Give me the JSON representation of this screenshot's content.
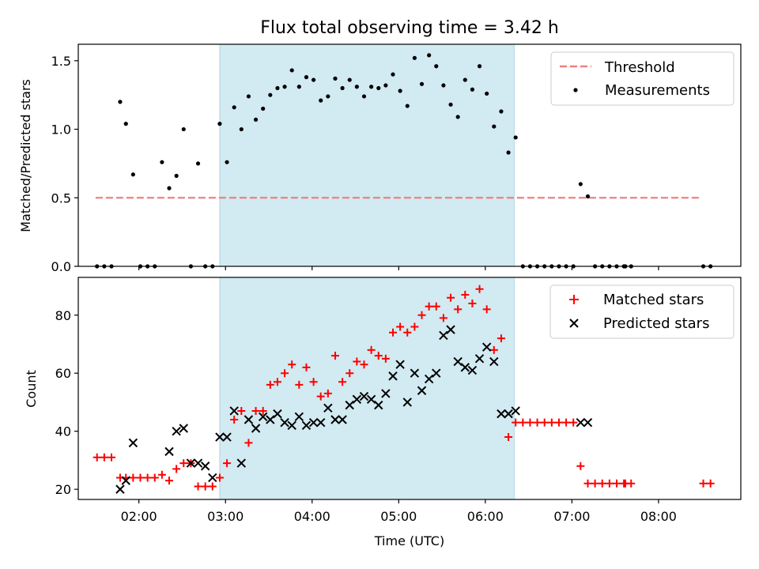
{
  "chart_data": {
    "title": "Flux total observing time = 3.42 h",
    "xlabel": "Time (UTC)",
    "xlim": [
      "01:18",
      "08:57"
    ],
    "xticks": [
      "02:00",
      "03:00",
      "04:00",
      "05:00",
      "06:00",
      "07:00",
      "08:00"
    ],
    "shaded_span": [
      "02:56",
      "06:20"
    ],
    "colors": {
      "shade": "#add8e6",
      "matched": "#ff0000",
      "predicted": "#000000",
      "threshold": "#f08080",
      "measurements": "#000000"
    },
    "panels": [
      {
        "id": "ratio",
        "type": "scatter",
        "ylabel": "Matched/Predicted stars",
        "ylim": [
          0,
          1.62
        ],
        "yticks": [
          "0.0",
          "0.5",
          "1.0",
          "1.5"
        ],
        "legend": [
          "Threshold",
          "Measurements"
        ],
        "legend_position": "top-right",
        "series": [
          {
            "name": "Threshold",
            "style": "dashed-line",
            "color": "#f08080",
            "x": [
              "01:30",
              "08:30"
            ],
            "y": [
              0.5,
              0.5
            ]
          },
          {
            "name": "Measurements",
            "style": "point",
            "color": "#000000",
            "x": [
              "01:31",
              "01:36",
              "01:41",
              "01:47",
              "01:51",
              "01:56",
              "02:01",
              "02:06",
              "02:11",
              "02:16",
              "02:21",
              "02:26",
              "02:31",
              "02:36",
              "02:41",
              "02:46",
              "02:51",
              "02:56",
              "03:01",
              "03:06",
              "03:11",
              "03:16",
              "03:21",
              "03:26",
              "03:31",
              "03:36",
              "03:41",
              "03:46",
              "03:51",
              "03:56",
              "04:01",
              "04:06",
              "04:11",
              "04:16",
              "04:21",
              "04:26",
              "04:31",
              "04:36",
              "04:41",
              "04:46",
              "04:51",
              "04:56",
              "05:01",
              "05:06",
              "05:11",
              "05:16",
              "05:21",
              "05:26",
              "05:31",
              "05:36",
              "05:41",
              "05:46",
              "05:51",
              "05:56",
              "06:01",
              "06:06",
              "06:11",
              "06:16",
              "06:21",
              "06:26",
              "06:31",
              "06:36",
              "06:41",
              "06:46",
              "06:51",
              "06:56",
              "07:01",
              "07:06",
              "07:11",
              "07:16",
              "07:21",
              "07:26",
              "07:31",
              "07:36",
              "07:37",
              "07:41",
              "08:31",
              "08:36"
            ],
            "y": [
              0,
              0,
              0,
              1.2,
              1.04,
              0.67,
              0,
              0,
              0,
              0.76,
              0.57,
              0.66,
              1.0,
              0,
              0.75,
              0,
              0,
              1.04,
              0.76,
              1.16,
              1.0,
              1.24,
              1.07,
              1.15,
              1.25,
              1.3,
              1.31,
              1.43,
              1.31,
              1.38,
              1.36,
              1.21,
              1.24,
              1.37,
              1.3,
              1.36,
              1.31,
              1.24,
              1.31,
              1.3,
              1.32,
              1.4,
              1.28,
              1.17,
              1.52,
              1.33,
              1.54,
              1.46,
              1.32,
              1.18,
              1.09,
              1.36,
              1.29,
              1.46,
              1.26,
              1.02,
              1.13,
              0.83,
              0.94,
              0,
              0,
              0,
              0,
              0,
              0,
              0,
              0,
              0.6,
              0.51,
              0,
              0,
              0,
              0,
              0,
              0,
              0,
              0,
              0
            ]
          }
        ]
      },
      {
        "id": "counts",
        "type": "scatter",
        "ylabel": "Count",
        "ylim": [
          16.5,
          93
        ],
        "yticks": [
          "20",
          "40",
          "60",
          "80"
        ],
        "legend": [
          "Matched stars",
          "Predicted stars"
        ],
        "legend_position": "top-right",
        "series": [
          {
            "name": "Matched stars",
            "marker": "+",
            "color": "#ff0000",
            "x": [
              "01:31",
              "01:36",
              "01:41",
              "01:47",
              "01:51",
              "01:56",
              "02:01",
              "02:06",
              "02:11",
              "02:16",
              "02:21",
              "02:26",
              "02:31",
              "02:36",
              "02:41",
              "02:46",
              "02:51",
              "02:56",
              "03:01",
              "03:06",
              "03:11",
              "03:16",
              "03:21",
              "03:26",
              "03:31",
              "03:36",
              "03:41",
              "03:46",
              "03:51",
              "03:56",
              "04:01",
              "04:06",
              "04:11",
              "04:16",
              "04:21",
              "04:26",
              "04:31",
              "04:36",
              "04:41",
              "04:46",
              "04:51",
              "04:56",
              "05:01",
              "05:06",
              "05:11",
              "05:16",
              "05:21",
              "05:26",
              "05:31",
              "05:36",
              "05:41",
              "05:46",
              "05:51",
              "05:56",
              "06:01",
              "06:06",
              "06:11",
              "06:16",
              "06:21",
              "06:26",
              "06:31",
              "06:36",
              "06:41",
              "06:46",
              "06:51",
              "06:56",
              "07:01",
              "07:06",
              "07:11",
              "07:16",
              "07:21",
              "07:26",
              "07:31",
              "07:36",
              "07:37",
              "07:41",
              "08:31",
              "08:36"
            ],
            "y": [
              31,
              31,
              31,
              24,
              24,
              24,
              24,
              24,
              24,
              25,
              23,
              27,
              29,
              29,
              21,
              21,
              21,
              24,
              29,
              44,
              47,
              36,
              47,
              47,
              56,
              57,
              60,
              63,
              56,
              62,
              57,
              52,
              53,
              66,
              57,
              60,
              64,
              63,
              68,
              66,
              65,
              74,
              76,
              74,
              76,
              80,
              83,
              83,
              79,
              86,
              82,
              87,
              84,
              89,
              82,
              68,
              72,
              38,
              43,
              43,
              43,
              43,
              43,
              43,
              43,
              43,
              43,
              28,
              22,
              22,
              22,
              22,
              22,
              22,
              22,
              22,
              22,
              22
            ]
          },
          {
            "name": "Predicted stars",
            "marker": "x",
            "color": "#000000",
            "x": [
              "01:47",
              "01:51",
              "01:56",
              "02:21",
              "02:26",
              "02:31",
              "02:36",
              "02:41",
              "02:46",
              "02:51",
              "02:56",
              "03:01",
              "03:06",
              "03:11",
              "03:16",
              "03:21",
              "03:26",
              "03:31",
              "03:36",
              "03:41",
              "03:46",
              "03:51",
              "03:56",
              "04:01",
              "04:06",
              "04:11",
              "04:16",
              "04:21",
              "04:26",
              "04:31",
              "04:36",
              "04:41",
              "04:46",
              "04:51",
              "04:56",
              "05:01",
              "05:06",
              "05:11",
              "05:16",
              "05:21",
              "05:26",
              "05:31",
              "05:36",
              "05:41",
              "05:46",
              "05:51",
              "05:56",
              "06:01",
              "06:06",
              "06:11",
              "06:16",
              "06:21",
              "07:06",
              "07:11"
            ],
            "y": [
              20,
              23,
              36,
              33,
              40,
              41,
              29,
              29,
              28,
              24,
              38,
              38,
              47,
              29,
              44,
              41,
              45,
              44,
              46,
              43,
              42,
              45,
              42,
              43,
              43,
              48,
              44,
              44,
              49,
              51,
              52,
              51,
              49,
              53,
              59,
              63,
              50,
              60,
              54,
              58,
              60,
              73,
              75,
              64,
              62,
              61,
              65,
              69,
              64,
              46,
              46,
              47,
              43,
              43
            ]
          }
        ]
      }
    ]
  }
}
